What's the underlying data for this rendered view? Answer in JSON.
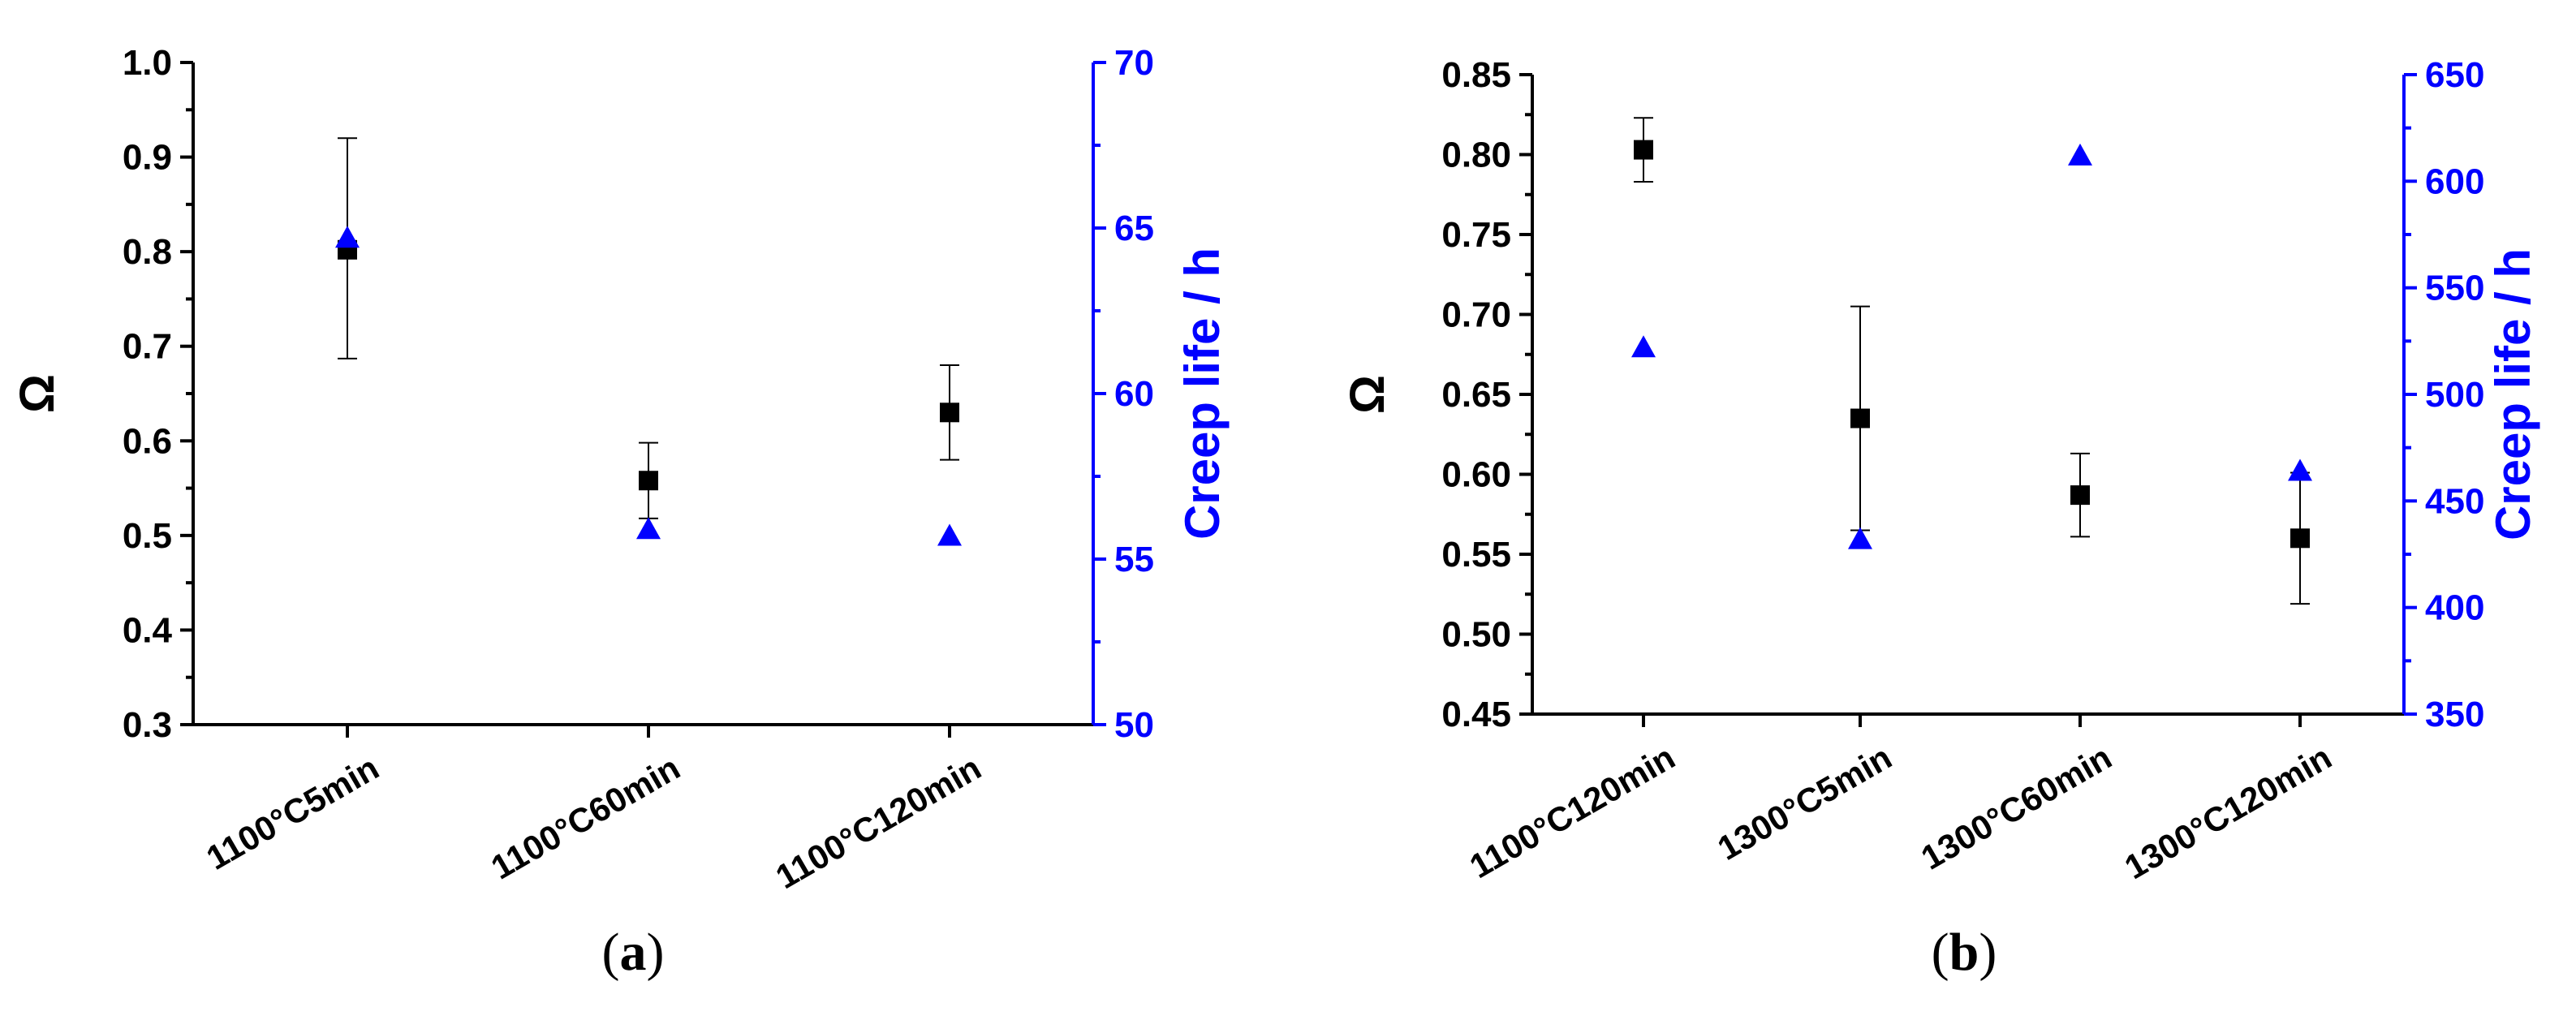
{
  "chart_data": [
    {
      "type": "scatter",
      "panel_label": "(a)",
      "panel_letter": "a",
      "categories": [
        "1100°C5min",
        "1100°C60min",
        "1100°C120min"
      ],
      "ylabel": "Ω",
      "ylim": [
        0.3,
        1.0
      ],
      "yticks": [
        "0.3",
        "0.4",
        "0.5",
        "0.6",
        "0.7",
        "0.8",
        "0.9",
        "1.0"
      ],
      "y2label": "Creep life / h",
      "y2lim": [
        50,
        70
      ],
      "y2ticks": [
        "50",
        "55",
        "60",
        "65",
        "70"
      ],
      "series": [
        {
          "axis": "left",
          "marker": "square",
          "color": "#000000",
          "values": [
            0.802,
            0.558,
            0.63
          ],
          "error_low": [
            0.687,
            0.518,
            0.58
          ],
          "error_high": [
            0.92,
            0.598,
            0.68
          ]
        },
        {
          "axis": "right",
          "marker": "triangle",
          "color": "#0000ff",
          "values": [
            64.7,
            55.9,
            55.7
          ]
        }
      ]
    },
    {
      "type": "scatter",
      "panel_label": "(b)",
      "panel_letter": "b",
      "categories": [
        "1100°C120min",
        "1300°C5min",
        "1300°C60min",
        "1300°C120min"
      ],
      "ylabel": "Ω",
      "ylim": [
        0.45,
        0.85
      ],
      "yticks": [
        "0.45",
        "0.50",
        "0.55",
        "0.60",
        "0.65",
        "0.70",
        "0.75",
        "0.80",
        "0.85"
      ],
      "y2label": "Creep life / h",
      "y2lim": [
        350,
        650
      ],
      "y2ticks": [
        "350",
        "400",
        "450",
        "500",
        "550",
        "600",
        "650"
      ],
      "series": [
        {
          "axis": "left",
          "marker": "square",
          "color": "#000000",
          "values": [
            0.803,
            0.635,
            0.587,
            0.56
          ],
          "error_low": [
            0.783,
            0.565,
            0.561,
            0.519
          ],
          "error_high": [
            0.823,
            0.705,
            0.613,
            0.601
          ]
        },
        {
          "axis": "right",
          "marker": "triangle",
          "color": "#0000ff",
          "values": [
            522,
            432,
            612,
            464
          ]
        }
      ]
    }
  ]
}
